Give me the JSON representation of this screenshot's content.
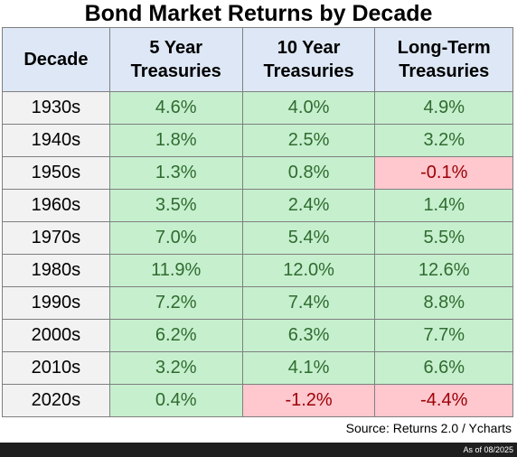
{
  "chart_data": {
    "type": "table",
    "title": "Bond Market Returns by Decade",
    "columns": [
      "Decade",
      "5 Year Treasuries",
      "10 Year Treasuries",
      "Long-Term Treasuries"
    ],
    "header_lines": [
      [
        "Decade"
      ],
      [
        "5 Year",
        "Treasuries"
      ],
      [
        "10 Year",
        "Treasuries"
      ],
      [
        "Long-Term",
        "Treasuries"
      ]
    ],
    "rows": [
      {
        "decade": "1930s",
        "values": [
          "4.6%",
          "4.0%",
          "4.9%"
        ]
      },
      {
        "decade": "1940s",
        "values": [
          "1.8%",
          "2.5%",
          "3.2%"
        ]
      },
      {
        "decade": "1950s",
        "values": [
          "1.3%",
          "0.8%",
          "-0.1%"
        ]
      },
      {
        "decade": "1960s",
        "values": [
          "3.5%",
          "2.4%",
          "1.4%"
        ]
      },
      {
        "decade": "1970s",
        "values": [
          "7.0%",
          "5.4%",
          "5.5%"
        ]
      },
      {
        "decade": "1980s",
        "values": [
          "11.9%",
          "12.0%",
          "12.6%"
        ]
      },
      {
        "decade": "1990s",
        "values": [
          "7.2%",
          "7.4%",
          "8.8%"
        ]
      },
      {
        "decade": "2000s",
        "values": [
          "6.2%",
          "6.3%",
          "7.7%"
        ]
      },
      {
        "decade": "2010s",
        "values": [
          "3.2%",
          "4.1%",
          "6.6%"
        ]
      },
      {
        "decade": "2020s",
        "values": [
          "0.4%",
          "-1.2%",
          "-4.4%"
        ]
      }
    ],
    "colors": {
      "positive_fill": "#c6efce",
      "negative_fill": "#ffc7ce",
      "header_fill": "#dde7f5"
    }
  },
  "source": "Source: Returns 2.0 / Ycharts",
  "as_of": "As of 08/2025"
}
